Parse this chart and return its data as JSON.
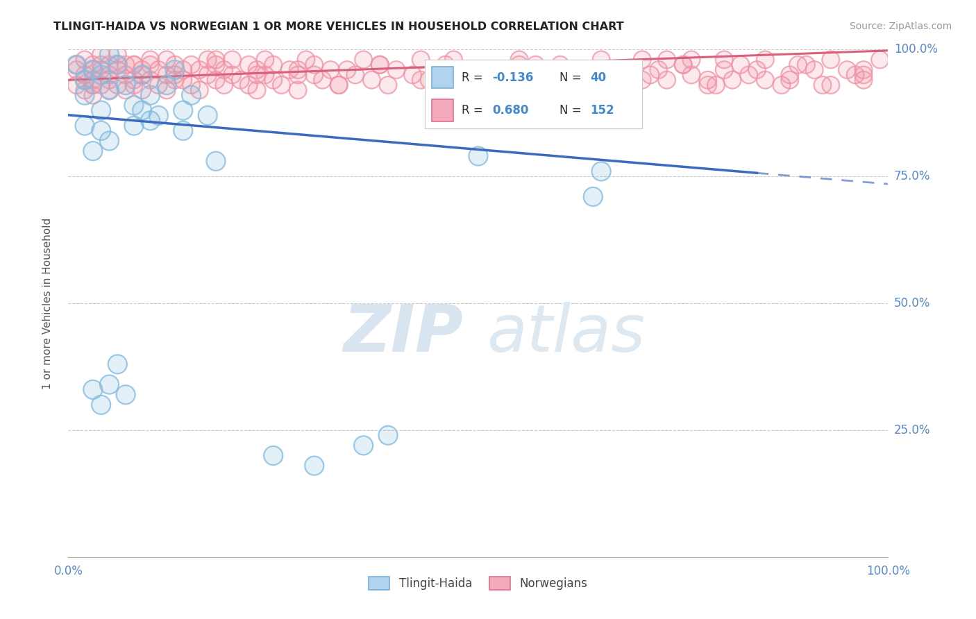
{
  "title": "TLINGIT-HAIDA VS NORWEGIAN 1 OR MORE VEHICLES IN HOUSEHOLD CORRELATION CHART",
  "source": "Source: ZipAtlas.com",
  "ylabel": "1 or more Vehicles in Household",
  "xlim": [
    0.0,
    1.0
  ],
  "ylim": [
    0.0,
    1.0
  ],
  "background_color": "#ffffff",
  "watermark_zip": "ZIP",
  "watermark_atlas": "atlas",
  "tlingit_R": -0.136,
  "tlingit_N": 40,
  "norwegian_R": 0.68,
  "norwegian_N": 152,
  "tlingit_scatter_color": "#85bde0",
  "norwegian_scatter_color": "#f093a5",
  "tlingit_line_color": "#3b6abf",
  "norwegian_line_color": "#d95f7a",
  "legend_box_color": "#a8cce8",
  "legend_box_color2": "#f4a8b8",
  "tlingit_line_solid_end": 0.84,
  "tlingit_line_x0": 0.0,
  "tlingit_line_y0": 0.871,
  "tlingit_line_x1": 1.0,
  "tlingit_line_y1": 0.735,
  "norwegian_line_x0": 0.0,
  "norwegian_line_y0": 0.94,
  "norwegian_line_x1": 1.0,
  "norwegian_line_y1": 0.998,
  "tlingit_x": [
    0.01,
    0.02,
    0.02,
    0.03,
    0.04,
    0.04,
    0.05,
    0.05,
    0.06,
    0.07,
    0.08,
    0.09,
    0.1,
    0.11,
    0.12,
    0.13,
    0.14,
    0.15,
    0.03,
    0.04,
    0.05,
    0.06,
    0.07,
    0.08,
    0.09,
    0.1,
    0.14,
    0.17,
    0.18,
    0.5,
    0.64,
    0.65,
    0.25,
    0.3,
    0.36,
    0.39,
    0.02,
    0.03,
    0.04,
    0.05
  ],
  "tlingit_y": [
    0.97,
    0.94,
    0.91,
    0.96,
    0.88,
    0.95,
    0.92,
    0.99,
    0.97,
    0.93,
    0.89,
    0.95,
    0.91,
    0.87,
    0.93,
    0.96,
    0.88,
    0.91,
    0.33,
    0.3,
    0.34,
    0.38,
    0.32,
    0.85,
    0.88,
    0.86,
    0.84,
    0.87,
    0.78,
    0.79,
    0.71,
    0.76,
    0.2,
    0.18,
    0.22,
    0.24,
    0.85,
    0.8,
    0.84,
    0.82
  ],
  "norwegian_x": [
    0.01,
    0.01,
    0.01,
    0.02,
    0.02,
    0.02,
    0.02,
    0.03,
    0.03,
    0.03,
    0.03,
    0.03,
    0.04,
    0.04,
    0.04,
    0.04,
    0.05,
    0.05,
    0.05,
    0.05,
    0.06,
    0.06,
    0.06,
    0.06,
    0.07,
    0.07,
    0.07,
    0.08,
    0.08,
    0.08,
    0.09,
    0.09,
    0.09,
    0.1,
    0.1,
    0.1,
    0.11,
    0.11,
    0.12,
    0.12,
    0.12,
    0.13,
    0.13,
    0.14,
    0.14,
    0.15,
    0.15,
    0.16,
    0.16,
    0.17,
    0.17,
    0.18,
    0.18,
    0.19,
    0.19,
    0.2,
    0.2,
    0.21,
    0.22,
    0.22,
    0.23,
    0.23,
    0.24,
    0.24,
    0.25,
    0.25,
    0.26,
    0.27,
    0.28,
    0.28,
    0.29,
    0.3,
    0.3,
    0.31,
    0.32,
    0.33,
    0.34,
    0.35,
    0.36,
    0.37,
    0.38,
    0.39,
    0.4,
    0.42,
    0.43,
    0.44,
    0.46,
    0.48,
    0.5,
    0.52,
    0.55,
    0.57,
    0.6,
    0.62,
    0.65,
    0.67,
    0.7,
    0.73,
    0.75,
    0.78,
    0.8,
    0.83,
    0.85,
    0.88,
    0.9,
    0.92,
    0.95,
    0.97,
    0.99,
    0.55,
    0.58,
    0.62,
    0.63,
    0.52,
    0.47,
    0.43,
    0.38,
    0.33,
    0.28,
    0.23,
    0.18,
    0.13,
    0.08,
    0.03,
    0.72,
    0.76,
    0.8,
    0.85,
    0.89,
    0.93,
    0.97,
    0.68,
    0.73,
    0.78,
    0.82,
    0.87,
    0.91,
    0.96,
    0.65,
    0.7,
    0.75,
    0.79,
    0.84,
    0.88,
    0.93,
    0.97,
    0.57,
    0.62,
    0.66,
    0.71,
    0.76,
    0.81
  ],
  "norwegian_y": [
    0.96,
    0.93,
    0.97,
    0.95,
    0.92,
    0.98,
    0.94,
    0.97,
    0.93,
    0.96,
    0.91,
    0.94,
    0.97,
    0.93,
    0.96,
    0.99,
    0.95,
    0.92,
    0.97,
    0.94,
    0.97,
    0.93,
    0.96,
    0.99,
    0.95,
    0.92,
    0.97,
    0.94,
    0.97,
    0.93,
    0.96,
    0.92,
    0.95,
    0.98,
    0.94,
    0.97,
    0.93,
    0.96,
    0.95,
    0.92,
    0.98,
    0.95,
    0.97,
    0.94,
    0.96,
    0.97,
    0.93,
    0.96,
    0.92,
    0.95,
    0.98,
    0.94,
    0.97,
    0.93,
    0.96,
    0.95,
    0.98,
    0.94,
    0.97,
    0.93,
    0.96,
    0.92,
    0.95,
    0.98,
    0.94,
    0.97,
    0.93,
    0.96,
    0.95,
    0.92,
    0.98,
    0.95,
    0.97,
    0.94,
    0.96,
    0.93,
    0.96,
    0.95,
    0.98,
    0.94,
    0.97,
    0.93,
    0.96,
    0.95,
    0.98,
    0.94,
    0.97,
    0.93,
    0.96,
    0.95,
    0.98,
    0.94,
    0.97,
    0.93,
    0.96,
    0.95,
    0.98,
    0.94,
    0.97,
    0.93,
    0.96,
    0.95,
    0.98,
    0.94,
    0.97,
    0.93,
    0.96,
    0.95,
    0.98,
    0.97,
    0.94,
    0.96,
    0.93,
    0.95,
    0.98,
    0.94,
    0.97,
    0.93,
    0.96,
    0.95,
    0.98,
    0.94,
    0.97,
    0.93,
    0.96,
    0.95,
    0.98,
    0.94,
    0.97,
    0.93,
    0.96,
    0.95,
    0.98,
    0.94,
    0.97,
    0.93,
    0.96,
    0.95,
    0.98,
    0.94,
    0.97,
    0.93,
    0.96,
    0.95,
    0.98,
    0.94,
    0.97,
    0.93,
    0.96,
    0.95,
    0.98,
    0.94
  ]
}
